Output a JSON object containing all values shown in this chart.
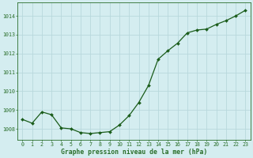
{
  "x": [
    0,
    1,
    2,
    3,
    4,
    5,
    6,
    7,
    8,
    9,
    10,
    11,
    12,
    13,
    14,
    15,
    16,
    17,
    18,
    19,
    20,
    21,
    22,
    23
  ],
  "y": [
    1008.5,
    1008.3,
    1008.9,
    1008.75,
    1008.05,
    1008.0,
    1007.8,
    1007.75,
    1007.8,
    1007.85,
    1008.2,
    1008.7,
    1009.4,
    1010.3,
    1011.7,
    1012.15,
    1012.55,
    1013.1,
    1013.25,
    1013.3,
    1013.55,
    1013.75,
    1014.0,
    1014.3
  ],
  "bg_color": "#d4edf0",
  "grid_color": "#b8d8dc",
  "line_color": "#1a5c1a",
  "marker_color": "#1a5c1a",
  "tick_color": "#2a6e2a",
  "label_color": "#2a6e2a",
  "xlabel": "Graphe pression niveau de la mer (hPa)",
  "ylim_min": 1007.4,
  "ylim_max": 1014.7,
  "xlim_min": -0.5,
  "xlim_max": 23.5,
  "yticks": [
    1008,
    1009,
    1010,
    1011,
    1012,
    1013,
    1014
  ],
  "xticks": [
    0,
    1,
    2,
    3,
    4,
    5,
    6,
    7,
    8,
    9,
    10,
    11,
    12,
    13,
    14,
    15,
    16,
    17,
    18,
    19,
    20,
    21,
    22,
    23
  ]
}
